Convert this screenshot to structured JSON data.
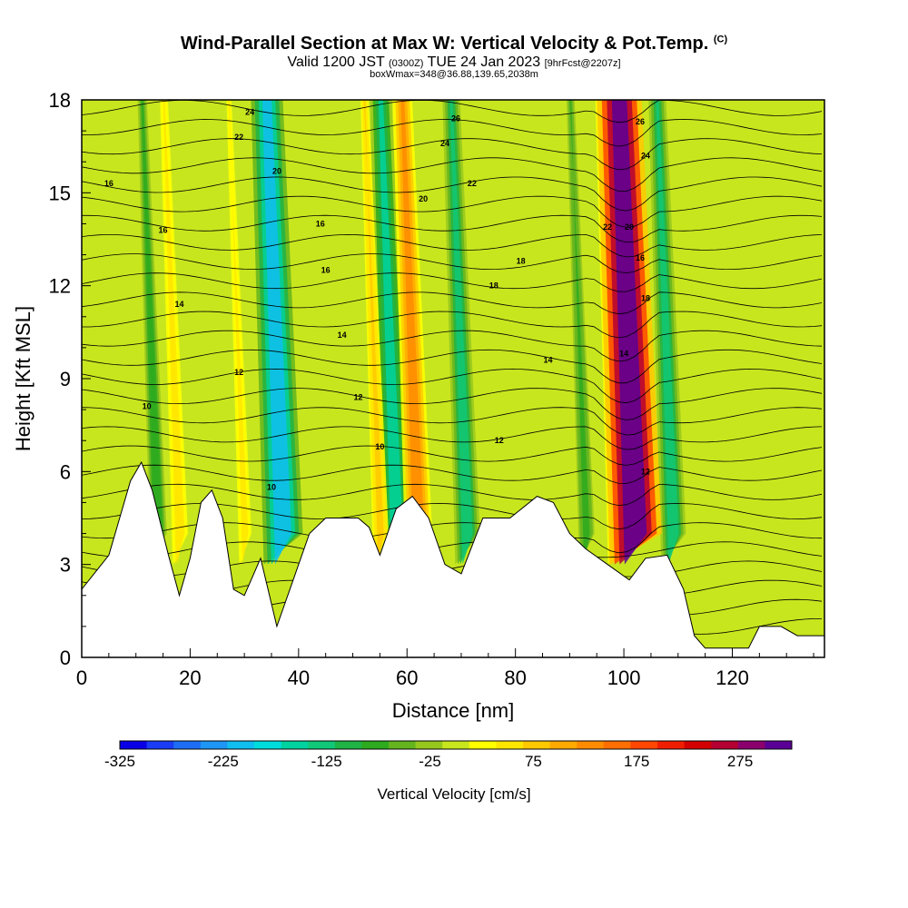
{
  "header": {
    "title": "Wind-Parallel Section at Max W: Vertical Velocity & Pot.Temp.",
    "copyright": "(C)",
    "valid_prefix": "Valid 1200 JST",
    "valid_utc": "(0300Z)",
    "valid_date": "TUE 24 Jan 2023",
    "forecast": "[9hrFcst@2207z]",
    "box_info": "boxWmax=348@36.88,139.65,2038m"
  },
  "colorbar": {
    "label": "Vertical Velocity [cm/s]",
    "tick_labels": [
      "-325",
      "-225",
      "-125",
      "-25",
      "75",
      "175",
      "275"
    ],
    "colors": [
      "#0a00e6",
      "#1a3cf5",
      "#1e6ef5",
      "#1e96f5",
      "#10bef0",
      "#00dcdc",
      "#00d2a0",
      "#10c878",
      "#1eb446",
      "#2daa1e",
      "#64b41e",
      "#96c81e",
      "#c8e61e",
      "#ffff00",
      "#ffe600",
      "#ffc800",
      "#ffaa00",
      "#ff8c00",
      "#ff6e00",
      "#ff4600",
      "#f01e00",
      "#d20000",
      "#b40032",
      "#8c006e",
      "#5a0096"
    ]
  },
  "chart_data": {
    "type": "heatmap",
    "title": "Wind-Parallel Section at Max W: Vertical Velocity & Pot.Temp.",
    "xlabel": "Distance [nm]",
    "ylabel": "Height [Kft MSL]",
    "xlim": [
      0,
      137
    ],
    "ylim": [
      0,
      18
    ],
    "x_ticks": [
      0,
      20,
      40,
      60,
      80,
      100,
      120
    ],
    "y_ticks": [
      0,
      3,
      6,
      9,
      12,
      15,
      18
    ],
    "colorbar_range": [
      -325,
      325
    ],
    "updraft_cores": [
      {
        "x": 16,
        "w": 60
      },
      {
        "x": 28,
        "w": 50
      },
      {
        "x": 53,
        "w": 80
      },
      {
        "x": 60,
        "w": 140
      },
      {
        "x": 97,
        "w": 120
      },
      {
        "x": 100,
        "w": 348
      }
    ],
    "downdraft_bands": [
      {
        "x": 12,
        "w": -90
      },
      {
        "x": 35,
        "w": -200
      },
      {
        "x": 56,
        "w": -150
      },
      {
        "x": 69,
        "w": -130
      },
      {
        "x": 91,
        "w": -80
      },
      {
        "x": 107,
        "w": -130
      }
    ],
    "terrain": [
      {
        "x": 0,
        "y": 2.2
      },
      {
        "x": 5,
        "y": 3.3
      },
      {
        "x": 9,
        "y": 5.7
      },
      {
        "x": 11,
        "y": 6.3
      },
      {
        "x": 13,
        "y": 5.4
      },
      {
        "x": 16,
        "y": 3.3
      },
      {
        "x": 18,
        "y": 2.0
      },
      {
        "x": 20,
        "y": 3.2
      },
      {
        "x": 22,
        "y": 5.0
      },
      {
        "x": 24,
        "y": 5.4
      },
      {
        "x": 26,
        "y": 4.5
      },
      {
        "x": 28,
        "y": 2.2
      },
      {
        "x": 30,
        "y": 2.0
      },
      {
        "x": 33,
        "y": 3.2
      },
      {
        "x": 36,
        "y": 1.0
      },
      {
        "x": 39,
        "y": 2.5
      },
      {
        "x": 42,
        "y": 4.0
      },
      {
        "x": 45,
        "y": 4.5
      },
      {
        "x": 51,
        "y": 4.5
      },
      {
        "x": 53,
        "y": 4.2
      },
      {
        "x": 55,
        "y": 3.3
      },
      {
        "x": 58,
        "y": 4.8
      },
      {
        "x": 61,
        "y": 5.2
      },
      {
        "x": 64,
        "y": 4.5
      },
      {
        "x": 67,
        "y": 3.0
      },
      {
        "x": 70,
        "y": 2.7
      },
      {
        "x": 74,
        "y": 4.5
      },
      {
        "x": 79,
        "y": 4.5
      },
      {
        "x": 84,
        "y": 5.2
      },
      {
        "x": 87,
        "y": 5.0
      },
      {
        "x": 90,
        "y": 4.0
      },
      {
        "x": 93,
        "y": 3.5
      },
      {
        "x": 97,
        "y": 3.0
      },
      {
        "x": 101,
        "y": 2.5
      },
      {
        "x": 104,
        "y": 3.2
      },
      {
        "x": 108,
        "y": 3.3
      },
      {
        "x": 111,
        "y": 2.2
      },
      {
        "x": 113,
        "y": 0.7
      },
      {
        "x": 115,
        "y": 0.3
      },
      {
        "x": 123,
        "y": 0.3
      },
      {
        "x": 125,
        "y": 1.0
      },
      {
        "x": 129,
        "y": 1.0
      },
      {
        "x": 132,
        "y": 0.7
      },
      {
        "x": 137,
        "y": 0.7
      }
    ],
    "potential_temperature_contours": [
      {
        "label": "10",
        "positions": [
          {
            "x": 12,
            "y": 8.1
          },
          {
            "x": 35,
            "y": 5.5
          },
          {
            "x": 55,
            "y": 6.8
          }
        ]
      },
      {
        "label": "12",
        "positions": [
          {
            "x": 29,
            "y": 9.2
          },
          {
            "x": 51,
            "y": 8.4
          },
          {
            "x": 77,
            "y": 7.0
          },
          {
            "x": 104,
            "y": 6.0
          }
        ]
      },
      {
        "label": "14",
        "positions": [
          {
            "x": 18,
            "y": 11.4
          },
          {
            "x": 48,
            "y": 10.4
          },
          {
            "x": 86,
            "y": 9.6
          },
          {
            "x": 100,
            "y": 9.8
          }
        ]
      },
      {
        "label": "16",
        "positions": [
          {
            "x": 5,
            "y": 15.3
          },
          {
            "x": 15,
            "y": 13.8
          },
          {
            "x": 44,
            "y": 14.0
          },
          {
            "x": 45,
            "y": 12.5
          },
          {
            "x": 103,
            "y": 12.9
          }
        ]
      },
      {
        "label": "18",
        "positions": [
          {
            "x": 76,
            "y": 12.0
          },
          {
            "x": 81,
            "y": 12.8
          },
          {
            "x": 104,
            "y": 11.6
          }
        ]
      },
      {
        "label": "20",
        "positions": [
          {
            "x": 36,
            "y": 15.7
          },
          {
            "x": 63,
            "y": 14.8
          },
          {
            "x": 101,
            "y": 13.9
          }
        ]
      },
      {
        "label": "22",
        "positions": [
          {
            "x": 29,
            "y": 16.8
          },
          {
            "x": 72,
            "y": 15.3
          },
          {
            "x": 97,
            "y": 13.9
          }
        ]
      },
      {
        "label": "24",
        "positions": [
          {
            "x": 31,
            "y": 17.6
          },
          {
            "x": 67,
            "y": 16.6
          },
          {
            "x": 104,
            "y": 16.2
          }
        ]
      },
      {
        "label": "26",
        "positions": [
          {
            "x": 69,
            "y": 17.4
          },
          {
            "x": 103,
            "y": 17.3
          }
        ]
      }
    ]
  }
}
